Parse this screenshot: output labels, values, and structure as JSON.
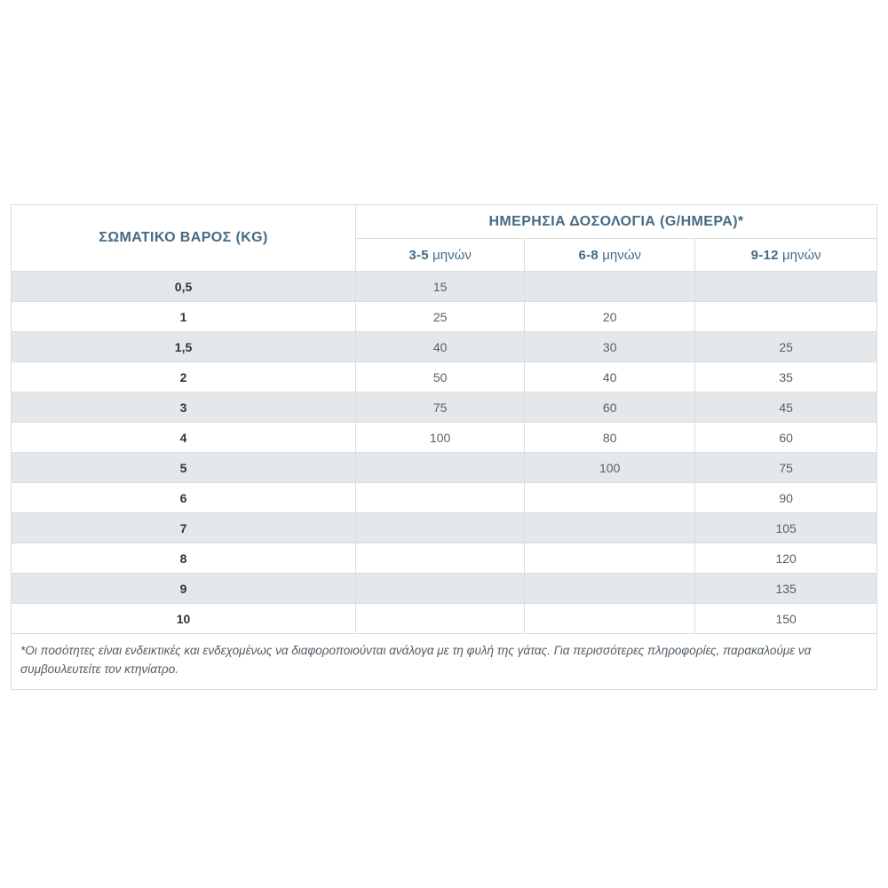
{
  "table": {
    "weight_header": "ΣΩΜΑΤΙΚΟ ΒΑΡΟΣ (KG)",
    "dosage_header": "ΗΜΕΡΗΣΙΑ ΔΟΣΟΛΟΓΙΑ (G/ΗΜΕΡΑ)*",
    "age_columns": [
      {
        "range": "3-5",
        "unit": "μηνών"
      },
      {
        "range": "6-8",
        "unit": "μηνών"
      },
      {
        "range": "9-12",
        "unit": "μηνών"
      }
    ],
    "rows": [
      {
        "weight": "0,5",
        "values": [
          "15",
          "",
          ""
        ]
      },
      {
        "weight": "1",
        "values": [
          "25",
          "20",
          ""
        ]
      },
      {
        "weight": "1,5",
        "values": [
          "40",
          "30",
          "25"
        ]
      },
      {
        "weight": "2",
        "values": [
          "50",
          "40",
          "35"
        ]
      },
      {
        "weight": "3",
        "values": [
          "75",
          "60",
          "45"
        ]
      },
      {
        "weight": "4",
        "values": [
          "100",
          "80",
          "60"
        ]
      },
      {
        "weight": "5",
        "values": [
          "",
          "100",
          "75"
        ]
      },
      {
        "weight": "6",
        "values": [
          "",
          "",
          "90"
        ]
      },
      {
        "weight": "7",
        "values": [
          "",
          "",
          "105"
        ]
      },
      {
        "weight": "8",
        "values": [
          "",
          "",
          "120"
        ]
      },
      {
        "weight": "9",
        "values": [
          "",
          "",
          "135"
        ]
      },
      {
        "weight": "10",
        "values": [
          "",
          "",
          "150"
        ]
      }
    ],
    "footnote": "*Οι ποσότητες είναι ενδεικτικές και ενδεχομένως να διαφοροποιούνται ανάλογα με τη φυλή της γάτας. Για περισσότερες πληροφορίες, παρακαλούμε να συμβουλευτείτε τον κτηνίατρο."
  },
  "colors": {
    "header_text": "#466a84",
    "body_text": "#595f66",
    "weight_text": "#2f343a",
    "stripe": "#e5e8ea",
    "grid_line": "#d9dddf",
    "outer_border": "#4c6877"
  }
}
